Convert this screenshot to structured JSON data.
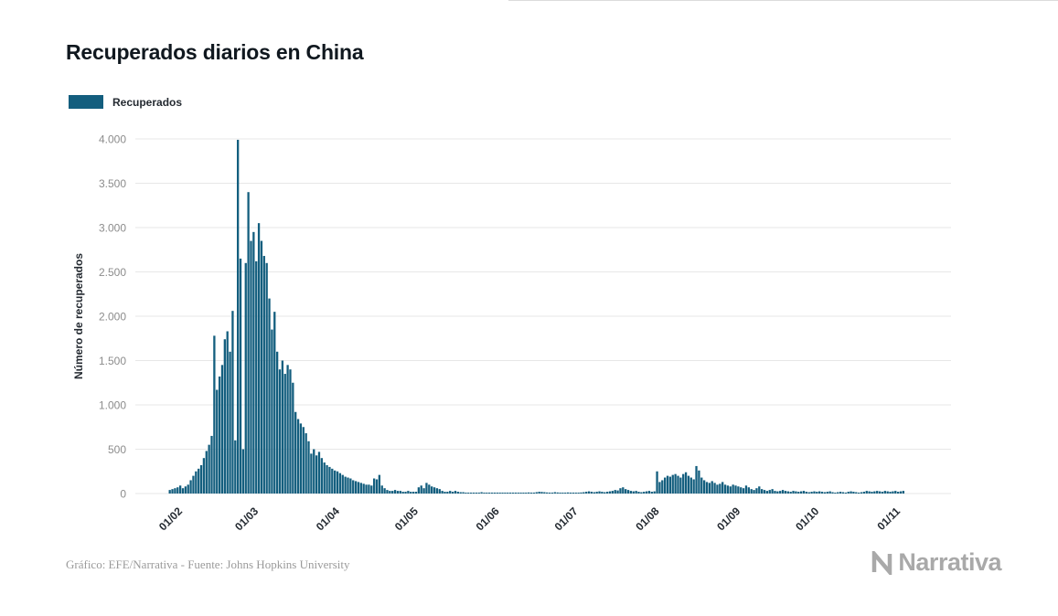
{
  "page": {
    "title": "Recuperados diarios en China"
  },
  "legend": {
    "label": "Recuperados"
  },
  "footer": {
    "credit": "Gráfico: EFE/Narrativa - Fuente: Johns Hopkins University",
    "brand": "Narrativa"
  },
  "colors": {
    "bar": "#135e7e",
    "grid": "#e7e7e7",
    "ytick": "#8c8c8c",
    "xtick": "#242a31",
    "title": "#10181f",
    "muted": "#9a9a9a",
    "brand": "#a9a9a9"
  },
  "chart_data": {
    "type": "bar",
    "title": "Recuperados diarios en China",
    "xlabel": "",
    "ylabel": "Número de recuperados",
    "ylim": [
      0,
      4000
    ],
    "grid": "horizontal",
    "legend": [
      "Recuperados"
    ],
    "legend_position": "top-left",
    "bar_color": "#135e7e",
    "yticks": [
      "0",
      "500",
      "1.000",
      "1.500",
      "2.000",
      "2.500",
      "3.000",
      "3.500",
      "4.000"
    ],
    "xticks": [
      "01/02",
      "01/03",
      "01/04",
      "01/05",
      "01/06",
      "01/07",
      "01/08",
      "01/09",
      "01/10",
      "01/11"
    ],
    "xtick_indices": [
      5,
      34,
      65,
      95,
      126,
      156,
      187,
      218,
      248,
      279
    ],
    "frequency": "daily",
    "series": [
      {
        "name": "Recuperados",
        "values": [
          40,
          50,
          60,
          70,
          90,
          60,
          80,
          100,
          150,
          200,
          250,
          280,
          320,
          400,
          480,
          550,
          650,
          1780,
          1170,
          1320,
          1450,
          1740,
          1830,
          1600,
          2060,
          600,
          3990,
          2650,
          500,
          2600,
          3400,
          2850,
          2950,
          2620,
          3050,
          2850,
          2680,
          2600,
          2200,
          1850,
          2050,
          1600,
          1400,
          1500,
          1350,
          1450,
          1400,
          1250,
          920,
          840,
          790,
          750,
          680,
          590,
          450,
          500,
          430,
          470,
          400,
          350,
          320,
          300,
          280,
          260,
          250,
          230,
          210,
          190,
          180,
          170,
          150,
          140,
          130,
          120,
          110,
          100,
          100,
          90,
          170,
          160,
          210,
          90,
          60,
          40,
          30,
          30,
          40,
          30,
          30,
          20,
          20,
          30,
          20,
          20,
          20,
          70,
          90,
          60,
          120,
          100,
          80,
          70,
          60,
          50,
          30,
          20,
          20,
          30,
          20,
          30,
          20,
          15,
          15,
          10,
          10,
          10,
          10,
          10,
          10,
          15,
          10,
          10,
          10,
          10,
          10,
          10,
          10,
          8,
          5,
          5,
          10,
          8,
          6,
          5,
          5,
          8,
          10,
          12,
          10,
          8,
          15,
          20,
          18,
          15,
          12,
          10,
          10,
          15,
          12,
          10,
          8,
          10,
          12,
          10,
          8,
          10,
          10,
          12,
          15,
          20,
          25,
          20,
          15,
          20,
          25,
          20,
          15,
          20,
          25,
          30,
          40,
          35,
          60,
          70,
          50,
          40,
          30,
          25,
          30,
          20,
          15,
          20,
          25,
          30,
          20,
          25,
          250,
          130,
          150,
          180,
          200,
          190,
          210,
          220,
          200,
          180,
          220,
          240,
          200,
          180,
          160,
          310,
          260,
          180,
          150,
          130,
          120,
          140,
          120,
          100,
          110,
          130,
          100,
          90,
          80,
          100,
          90,
          80,
          70,
          60,
          90,
          70,
          50,
          40,
          60,
          80,
          50,
          40,
          30,
          40,
          50,
          30,
          25,
          30,
          40,
          30,
          25,
          20,
          30,
          25,
          20,
          25,
          30,
          20,
          15,
          20,
          25,
          20,
          25,
          20,
          15,
          20,
          25,
          15,
          10,
          15,
          20,
          15,
          10,
          20,
          25,
          20,
          15,
          10,
          15,
          20,
          30,
          25,
          20,
          25,
          30,
          25,
          20,
          30,
          25,
          20,
          25,
          30,
          20,
          25,
          30
        ]
      }
    ]
  }
}
